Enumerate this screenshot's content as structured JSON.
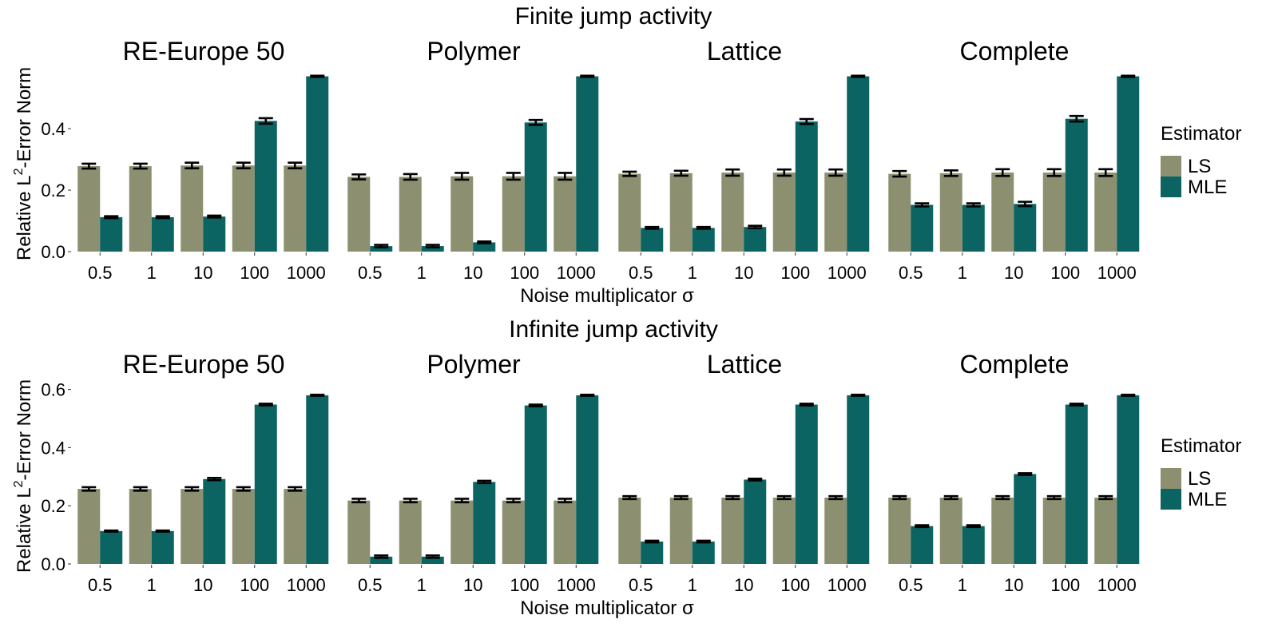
{
  "colors": {
    "LS": "#8c9070",
    "MLE": "#0b6462"
  },
  "legend": {
    "title": "Estimator",
    "entries": [
      "LS",
      "MLE"
    ],
    "position": "right"
  },
  "chart_data": [
    {
      "type": "bar",
      "title": "Finite jump activity",
      "xlabel": "Noise multiplicator σ",
      "ylabel": "Relative L2-Error Norm",
      "ylabel_parts": {
        "pre": "Relative  L",
        "sup": "2",
        "post": "-Error Norm"
      },
      "ylim": [
        0,
        0.585
      ],
      "yticks": [
        0.0,
        0.2,
        0.4
      ],
      "ytick_labels": [
        "0.0",
        "0.2",
        "0.4"
      ],
      "categories": [
        "0.5",
        "1",
        "10",
        "100",
        "1000"
      ],
      "facets": [
        {
          "name": "RE-Europe 50",
          "series": [
            {
              "name": "LS",
              "values": [
                0.278,
                0.278,
                0.28,
                0.28,
                0.28
              ],
              "err": [
                0.008,
                0.008,
                0.009,
                0.009,
                0.009
              ]
            },
            {
              "name": "MLE",
              "values": [
                0.112,
                0.112,
                0.114,
                0.425,
                0.57
              ],
              "err": [
                0.003,
                0.003,
                0.003,
                0.009,
                0.002
              ]
            }
          ]
        },
        {
          "name": "Polymer",
          "series": [
            {
              "name": "LS",
              "values": [
                0.243,
                0.243,
                0.245,
                0.245,
                0.245
              ],
              "err": [
                0.008,
                0.009,
                0.011,
                0.011,
                0.011
              ]
            },
            {
              "name": "MLE",
              "values": [
                0.018,
                0.018,
                0.03,
                0.42,
                0.57
              ],
              "err": [
                0.004,
                0.004,
                0.003,
                0.008,
                0.002
              ]
            }
          ]
        },
        {
          "name": "Lattice",
          "series": [
            {
              "name": "LS",
              "values": [
                0.253,
                0.255,
                0.257,
                0.257,
                0.257
              ],
              "err": [
                0.007,
                0.008,
                0.01,
                0.01,
                0.01
              ]
            },
            {
              "name": "MLE",
              "values": [
                0.077,
                0.077,
                0.08,
                0.423,
                0.57
              ],
              "err": [
                0.003,
                0.003,
                0.004,
                0.008,
                0.002
              ]
            }
          ]
        },
        {
          "name": "Complete",
          "series": [
            {
              "name": "LS",
              "values": [
                0.253,
                0.255,
                0.257,
                0.257,
                0.257
              ],
              "err": [
                0.009,
                0.009,
                0.011,
                0.011,
                0.011
              ]
            },
            {
              "name": "MLE",
              "values": [
                0.152,
                0.152,
                0.155,
                0.432,
                0.57
              ],
              "err": [
                0.005,
                0.005,
                0.007,
                0.009,
                0.002
              ]
            }
          ]
        }
      ]
    },
    {
      "type": "bar",
      "title": "Infinite jump activity",
      "xlabel": "Noise multiplicator σ",
      "ylabel": "Relative L2-Error Norm",
      "ylabel_parts": {
        "pre": "Relative  L",
        "sup": "2",
        "post": "-Error Norm"
      },
      "ylim": [
        0,
        0.605
      ],
      "yticks": [
        0.0,
        0.2,
        0.4,
        0.6
      ],
      "ytick_labels": [
        "0.0",
        "0.2",
        "0.4",
        "0.6"
      ],
      "categories": [
        "0.5",
        "1",
        "10",
        "100",
        "1000"
      ],
      "facets": [
        {
          "name": "RE-Europe 50",
          "series": [
            {
              "name": "LS",
              "values": [
                0.258,
                0.258,
                0.258,
                0.258,
                0.258
              ],
              "err": [
                0.006,
                0.006,
                0.006,
                0.006,
                0.006
              ]
            },
            {
              "name": "MLE",
              "values": [
                0.113,
                0.113,
                0.292,
                0.548,
                0.58
              ],
              "err": [
                0.002,
                0.002,
                0.004,
                0.003,
                0.002
              ]
            }
          ]
        },
        {
          "name": "Polymer",
          "series": [
            {
              "name": "LS",
              "values": [
                0.218,
                0.218,
                0.218,
                0.218,
                0.218
              ],
              "err": [
                0.006,
                0.006,
                0.006,
                0.006,
                0.006
              ]
            },
            {
              "name": "MLE",
              "values": [
                0.025,
                0.025,
                0.282,
                0.545,
                0.58
              ],
              "err": [
                0.004,
                0.004,
                0.004,
                0.003,
                0.002
              ]
            }
          ]
        },
        {
          "name": "Lattice",
          "series": [
            {
              "name": "LS",
              "values": [
                0.228,
                0.228,
                0.228,
                0.228,
                0.228
              ],
              "err": [
                0.005,
                0.005,
                0.005,
                0.005,
                0.005
              ]
            },
            {
              "name": "MLE",
              "values": [
                0.077,
                0.077,
                0.29,
                0.548,
                0.58
              ],
              "err": [
                0.003,
                0.003,
                0.003,
                0.003,
                0.002
              ]
            }
          ]
        },
        {
          "name": "Complete",
          "series": [
            {
              "name": "LS",
              "values": [
                0.228,
                0.228,
                0.228,
                0.228,
                0.228
              ],
              "err": [
                0.005,
                0.005,
                0.005,
                0.005,
                0.005
              ]
            },
            {
              "name": "MLE",
              "values": [
                0.13,
                0.13,
                0.309,
                0.548,
                0.58
              ],
              "err": [
                0.003,
                0.003,
                0.003,
                0.003,
                0.002
              ]
            }
          ]
        }
      ]
    }
  ]
}
